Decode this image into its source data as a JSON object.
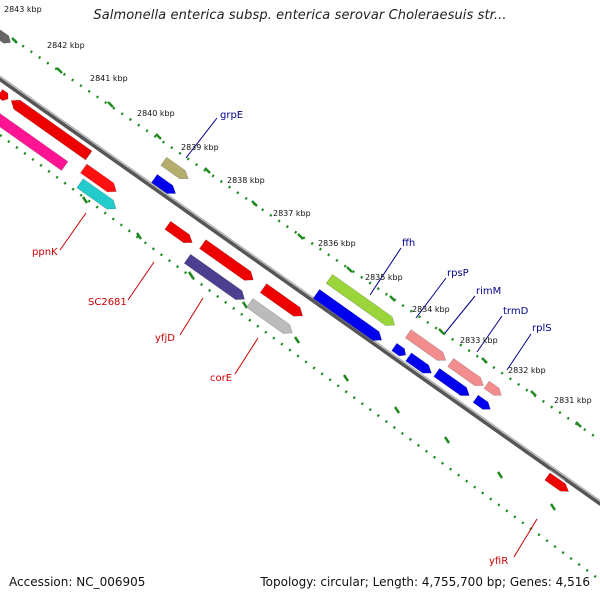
{
  "title": "Salmonella enterica subsp. enterica serovar Choleraesuis str...",
  "footer": {
    "accession": "Accession: NC_006905",
    "summary": "Topology: circular; Length: 4,755,700 bp; Genes: 4,516"
  },
  "colors": {
    "backbone": "#8a8a8a",
    "tick_green": "#1f8a1f",
    "forward_label": "#00008b",
    "reverse_label": "#cc0000"
  },
  "kbp_labels": [
    "2843 kbp",
    "2842 kbp",
    "2841 kbp",
    "2840 kbp",
    "2839 kbp",
    "2838 kbp",
    "2837 kbp",
    "2836 kbp",
    "2835 kbp",
    "2834 kbp",
    "2833 kbp",
    "2832 kbp",
    "2831 kbp"
  ],
  "forward_genes": [
    "grpE",
    "ffh",
    "rpsP",
    "rimM",
    "trmD",
    "rplS"
  ],
  "reverse_genes": [
    "ppnK",
    "SC2681",
    "yfjD",
    "corE",
    "yfiR"
  ]
}
